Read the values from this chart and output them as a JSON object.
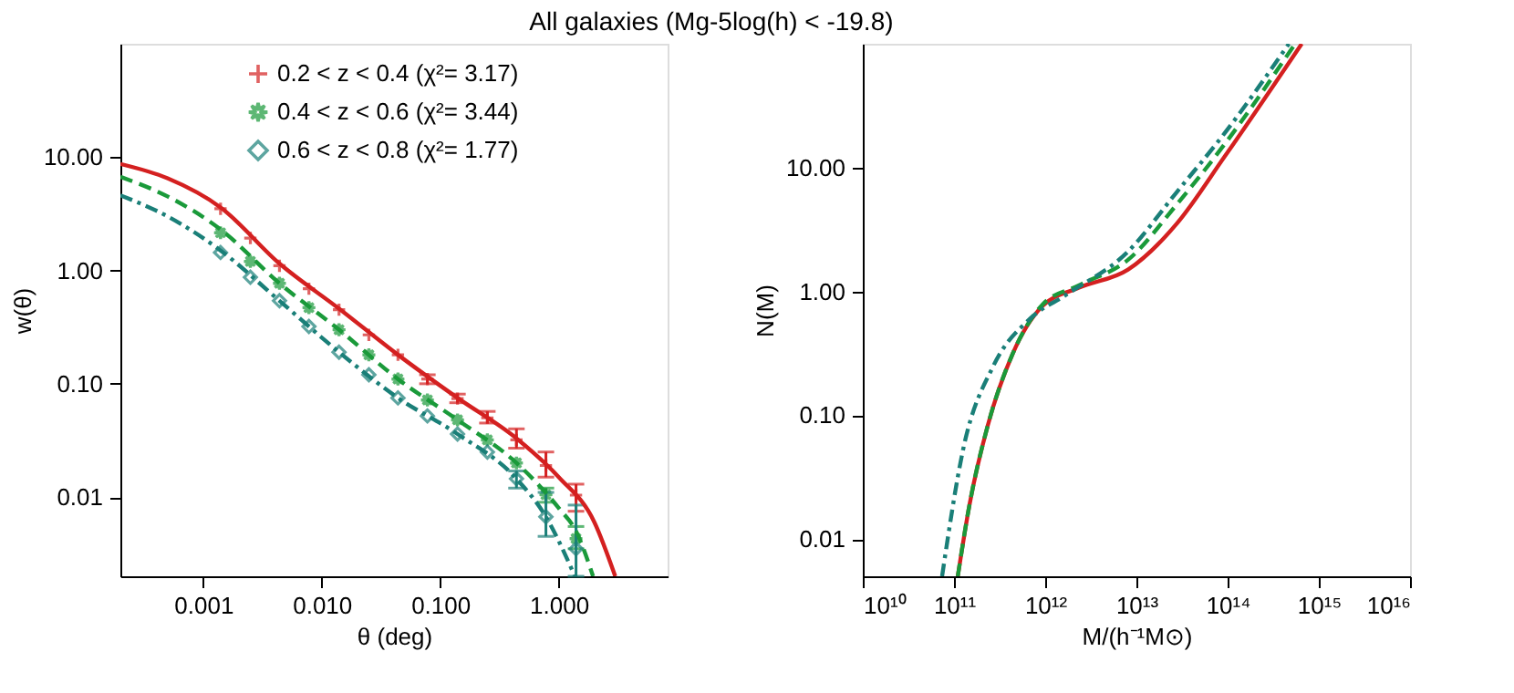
{
  "chart_data": [
    {
      "type": "scatter",
      "title": "All galaxies (Mg-5log(h) < -19.8)",
      "xlabel": "θ (deg)",
      "ylabel": "w(θ)",
      "log": "xy",
      "legend": "top right",
      "xlim": [
        0.0002,
        8.3
      ],
      "ylim": [
        0.002,
        100
      ],
      "xticks": [
        {
          "value": 0.001,
          "label": "0.001"
        },
        {
          "value": 0.01,
          "label": "0.010"
        },
        {
          "value": 0.1,
          "label": "0.100"
        },
        {
          "value": 1,
          "label": "1.000"
        }
      ],
      "yticks": [
        {
          "value": 0.01,
          "label": "0.01"
        },
        {
          "value": 0.1,
          "label": "0.10"
        },
        {
          "value": 1,
          "label": "1.00"
        },
        {
          "value": 10,
          "label": "10.00"
        }
      ],
      "series": [
        {
          "name": "0.2 < z < 0.4 (χ²= 3.17)",
          "marker": "cross",
          "color": "#d42020",
          "x": [
            0.0014,
            0.0025,
            0.0044,
            0.0078,
            0.014,
            0.025,
            0.044,
            0.078,
            0.14,
            0.25,
            0.44,
            0.78,
            1.4
          ],
          "values": [
            3.5,
            1.93,
            1.1,
            0.69,
            0.45,
            0.27,
            0.18,
            0.11,
            0.074,
            0.05,
            0.032,
            0.019,
            0.0104
          ],
          "errors": [
            null,
            null,
            null,
            null,
            null,
            null,
            null,
            [
              0.1,
              0.12
            ],
            [
              0.068,
              0.081
            ],
            [
              0.045,
              0.057
            ],
            [
              0.027,
              0.04
            ],
            [
              0.015,
              0.025
            ],
            [
              0.0075,
              0.013
            ]
          ]
        },
        {
          "name": "0.4 < z < 0.6 (χ²= 3.44)",
          "marker": "star",
          "color": "#1a9a3a",
          "x": [
            0.0014,
            0.0025,
            0.0044,
            0.0078,
            0.014,
            0.025,
            0.044,
            0.078,
            0.14,
            0.25,
            0.44,
            0.78,
            1.4
          ],
          "values": [
            2.15,
            1.2,
            0.77,
            0.47,
            0.3,
            0.18,
            0.11,
            0.072,
            0.048,
            0.032,
            0.02,
            0.0105,
            0.0043
          ],
          "errors": [
            null,
            null,
            null,
            null,
            null,
            null,
            null,
            null,
            null,
            null,
            null,
            [
              0.009,
              0.012
            ],
            [
              0.0035,
              0.0055
            ]
          ]
        },
        {
          "name": "0.6 < z < 0.8 (χ²= 1.77)",
          "marker": "diamond",
          "color": "#1a7f78",
          "x": [
            0.0014,
            0.0025,
            0.0044,
            0.0078,
            0.014,
            0.025,
            0.044,
            0.078,
            0.14,
            0.25,
            0.44,
            0.78,
            1.4
          ],
          "values": [
            1.44,
            0.87,
            0.54,
            0.32,
            0.19,
            0.12,
            0.075,
            0.052,
            0.036,
            0.025,
            0.0145,
            0.0067,
            0.0035
          ],
          "errors": [
            null,
            null,
            null,
            null,
            null,
            null,
            null,
            null,
            null,
            null,
            [
              0.012,
              0.017
            ],
            [
              0.0045,
              0.011
            ],
            [
              0.002,
              0.0085
            ]
          ]
        },
        {
          "type": "line",
          "line_style": "solid",
          "color": "#d42020",
          "x": [
            0.0002,
            0.0005,
            0.0014,
            0.0044,
            0.014,
            0.044,
            0.14,
            0.44,
            1.0,
            2.0,
            3.0
          ],
          "values": [
            8.7,
            6.5,
            3.6,
            1.15,
            0.46,
            0.18,
            0.075,
            0.033,
            0.015,
            0.006,
            0.002
          ]
        },
        {
          "type": "line",
          "line_style": "dashed",
          "color": "#1a9a3a",
          "x": [
            0.0002,
            0.0005,
            0.0014,
            0.0044,
            0.014,
            0.044,
            0.14,
            0.44,
            1.0,
            1.4,
            1.95
          ],
          "values": [
            6.7,
            4.5,
            2.3,
            0.77,
            0.3,
            0.11,
            0.048,
            0.02,
            0.008,
            0.005,
            0.002
          ]
        },
        {
          "type": "line",
          "line_style": "dotted",
          "color": "#1a7f78",
          "x": [
            0.0002,
            0.0005,
            0.0014,
            0.0044,
            0.014,
            0.044,
            0.14,
            0.44,
            0.78,
            1.37
          ],
          "values": [
            4.6,
            3.0,
            1.5,
            0.54,
            0.19,
            0.075,
            0.036,
            0.0145,
            0.0067,
            0.002
          ]
        }
      ]
    },
    {
      "type": "line",
      "xlabel": "M/(h⁻¹M⊙)",
      "ylabel": "N(M)",
      "log": "xy",
      "xlim": [
        10000000000.0,
        1e+16
      ],
      "ylim": [
        0.005,
        100
      ],
      "xticks": [
        {
          "value": 10000000000.0,
          "label": "10¹⁰"
        },
        {
          "value": 100000000000.0,
          "label": "10¹¹"
        },
        {
          "value": 1000000000000.0,
          "label": "10¹²"
        },
        {
          "value": 10000000000000.0,
          "label": "10¹³"
        },
        {
          "value": 100000000000000.0,
          "label": "10¹⁴"
        },
        {
          "value": 1000000000000000.0,
          "label": "10¹⁵"
        },
        {
          "value": 1e+16,
          "label": "10¹⁶"
        }
      ],
      "yticks": [
        {
          "value": 0.01,
          "label": "0.01"
        },
        {
          "value": 0.1,
          "label": "0.10"
        },
        {
          "value": 1,
          "label": "1.00"
        },
        {
          "value": 10,
          "label": "10.00"
        }
      ],
      "series": [
        {
          "line_style": "solid",
          "color": "#d42020",
          "x": [
            110000000000.0,
            148000000000.0,
            234000000000.0,
            437000000000.0,
            930000000000.0,
            2340000000000.0,
            8100000000000.0,
            27500000000000.0,
            93000000000000.0,
            650000000000000.0
          ],
          "values": [
            0.005,
            0.019,
            0.082,
            0.31,
            0.76,
            1.07,
            1.5,
            3.5,
            12.3,
            100
          ]
        },
        {
          "line_style": "dashed",
          "color": "#1a9a3a",
          "x": [
            110000000000.0,
            148000000000.0,
            234000000000.0,
            437000000000.0,
            930000000000.0,
            2340000000000.0,
            8100000000000.0,
            27500000000000.0,
            93000000000000.0,
            550000000000000.0
          ],
          "values": [
            0.005,
            0.019,
            0.082,
            0.31,
            0.78,
            1.12,
            1.8,
            5,
            15.5,
            100
          ]
        },
        {
          "line_style": "dotted",
          "color": "#1a7f78",
          "x": [
            74000000000.0,
            126000000000.0,
            270000000000.0,
            680000000000.0,
            1700000000000.0,
            8100000000000.0,
            27500000000000.0,
            93000000000000.0,
            470000000000000.0
          ],
          "values": [
            0.005,
            0.053,
            0.25,
            0.6,
            0.94,
            2.1,
            6.3,
            19,
            100
          ]
        }
      ]
    }
  ]
}
